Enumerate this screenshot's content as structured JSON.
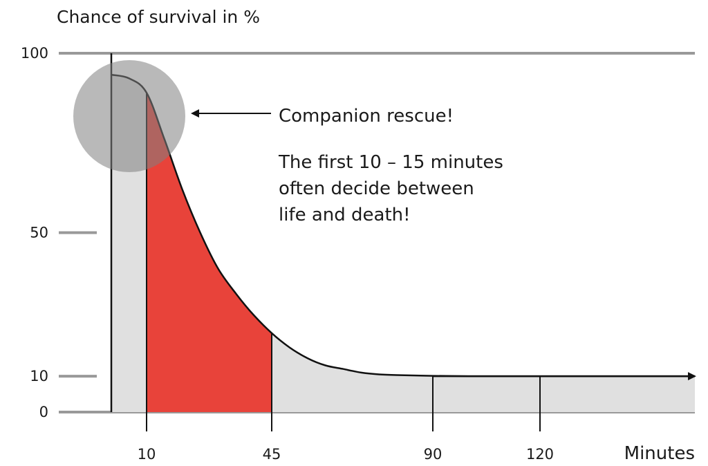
{
  "chart_data": {
    "type": "area",
    "ylabel": "Chance of survival in %",
    "xlabel": "Minutes",
    "y_ticks": [
      "100",
      "50",
      "10",
      "0"
    ],
    "y_tick_values": [
      100,
      50,
      10,
      0
    ],
    "x_ticks": [
      "10",
      "45",
      "90",
      "120"
    ],
    "x_tick_values": [
      10,
      45,
      90,
      120
    ],
    "xlim": [
      0,
      165
    ],
    "ylim": [
      0,
      100
    ],
    "series": [
      {
        "x": [
          0,
          5,
          10,
          15,
          20,
          25,
          30,
          35,
          40,
          45,
          50,
          55,
          60,
          65,
          70,
          75,
          80,
          90,
          100,
          110,
          120,
          130,
          140,
          150,
          160
        ],
        "y": [
          94,
          93,
          89,
          76,
          62,
          50,
          40,
          33,
          27,
          22,
          18,
          15,
          13,
          12,
          11,
          10.5,
          10.3,
          10.1,
          10,
          10,
          10,
          10,
          10,
          10,
          10
        ]
      }
    ],
    "highlight_range": [
      10,
      45
    ],
    "highlight_color": "#e8433a",
    "fill_color": "#e0e0e0",
    "grid_color": "#999999",
    "circle_color": "#808080",
    "annotations": {
      "arrow_label": "Companion rescue!",
      "note_lines": [
        "The first 10 – 15 minutes",
        "often decide between",
        "life and death!"
      ]
    }
  }
}
